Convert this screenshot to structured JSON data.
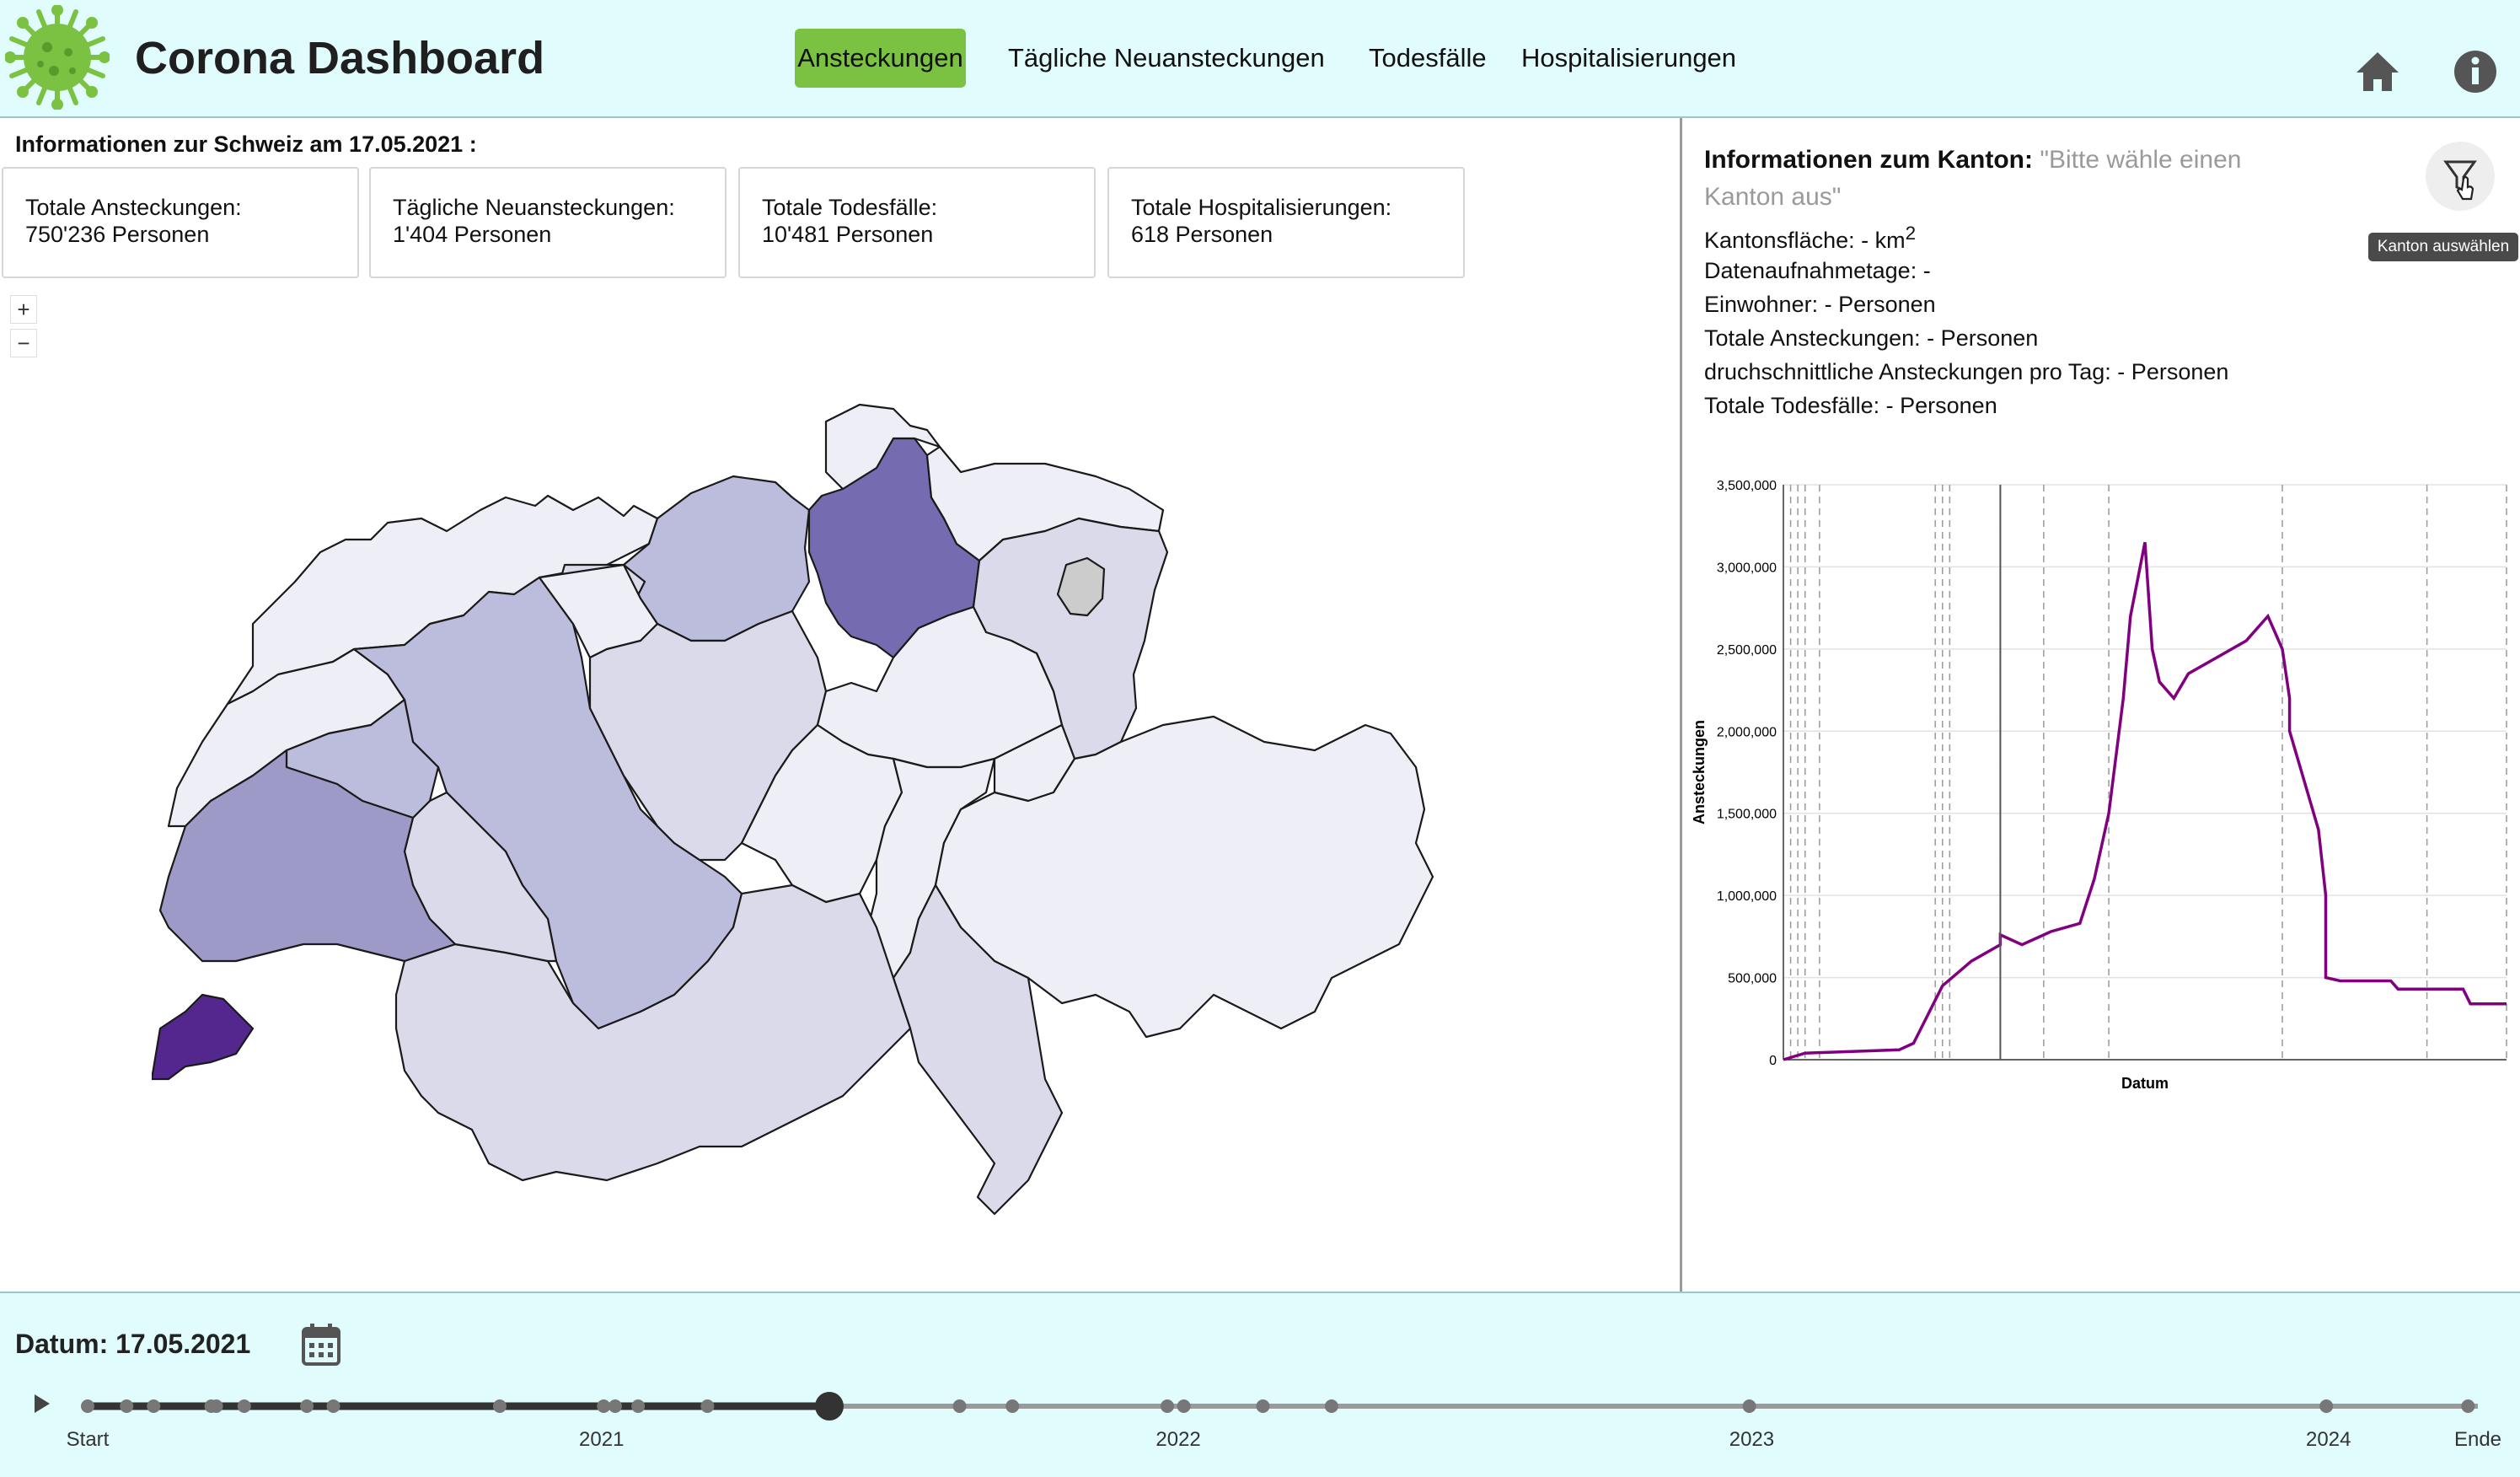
{
  "header": {
    "title": "Corona Dashboard",
    "nav": [
      "Ansteckungen",
      "Tägliche Neuansteckungen",
      "Todesfälle",
      "Hospitalisierungen"
    ],
    "active_index": 0,
    "icons": [
      "virus-logo-icon",
      "home-icon",
      "info-icon"
    ]
  },
  "switzerland": {
    "heading": "Informationen zur Schweiz am 17.05.2021 :",
    "cards": [
      {
        "label": "Totale Ansteckungen:",
        "value": "750'236 Personen"
      },
      {
        "label": "Tägliche Neuansteckungen:",
        "value": "1'404 Personen"
      },
      {
        "label": "Totale Todesfälle:",
        "value": "10'481 Personen"
      },
      {
        "label": "Totale Hospitalisierungen:",
        "value": "618 Personen"
      }
    ],
    "zoom_in": "+",
    "zoom_out": "−"
  },
  "kanton": {
    "heading_label": "Informationen zum Kanton:",
    "heading_placeholder": "\"Bitte wähle einen Kanton aus\"",
    "area_label": "Kantonsfläche: - km",
    "area_sup": "2",
    "rows": [
      "Datenaufnahmetage: -",
      "Einwohner: - Personen",
      "Totale Ansteckungen: - Personen",
      "druchschnittliche Ansteckungen pro Tag: - Personen",
      "Totale Todesfälle: - Personen"
    ],
    "filter_tooltip": "Kanton auswählen"
  },
  "colors": {
    "header_bg": "#e0fcfd",
    "nav_active": "#7bc142",
    "chart_line": "#800080",
    "map_scale": [
      "#eeeef7",
      "#dadaeb",
      "#bcbddc",
      "#9e9ac8",
      "#756bb1",
      "#54278f"
    ]
  },
  "chart_data": {
    "type": "line",
    "xlabel": "Datum",
    "ylabel": "Ansteckungen",
    "ylim": [
      0,
      3500000
    ],
    "yticks": [
      "0",
      "500,000",
      "1,000,000",
      "1,500,000",
      "2,000,000",
      "2,500,000",
      "3,000,000",
      "3,500,000"
    ],
    "grid": true,
    "x_fraction": [
      0.0,
      0.03,
      0.16,
      0.18,
      0.22,
      0.26,
      0.3,
      0.3,
      0.33,
      0.37,
      0.41,
      0.43,
      0.45,
      0.47,
      0.48,
      0.5,
      0.51,
      0.52,
      0.54,
      0.56,
      0.6,
      0.64,
      0.67,
      0.69,
      0.7,
      0.7,
      0.72,
      0.74,
      0.75,
      0.75,
      0.77,
      0.84,
      0.85,
      0.85,
      0.94,
      0.95,
      1.0
    ],
    "values": [
      0,
      40000,
      60000,
      100000,
      450000,
      600000,
      700000,
      760000,
      700000,
      780000,
      830000,
      1100000,
      1500000,
      2200000,
      2700000,
      3150000,
      2500000,
      2300000,
      2200000,
      2350000,
      2450000,
      2550000,
      2700000,
      2500000,
      2200000,
      2000000,
      1700000,
      1400000,
      1000000,
      500000,
      480000,
      480000,
      430000,
      430000,
      430000,
      340000,
      340000
    ],
    "marker_fraction": 0.3
  },
  "footer": {
    "date_label": "Datum: 17.05.2021",
    "timeline": {
      "labels": [
        {
          "text": "Start",
          "fraction": 0.0
        },
        {
          "text": "2021",
          "fraction": 0.215
        },
        {
          "text": "2022",
          "fraction": 0.4563
        },
        {
          "text": "2023",
          "fraction": 0.6962
        },
        {
          "text": "2024",
          "fraction": 0.9375
        },
        {
          "text": "Ende",
          "fraction": 1.0
        }
      ],
      "value_fraction": 0.3103,
      "marks": [
        0.0,
        0.0163,
        0.0276,
        0.0517,
        0.0538,
        0.0655,
        0.0917,
        0.1028,
        0.1724,
        0.2159,
        0.2207,
        0.2303,
        0.2593,
        0.3648,
        0.3869,
        0.4517,
        0.4586,
        0.4917,
        0.5204,
        0.6952,
        0.9366,
        0.9959
      ]
    }
  }
}
